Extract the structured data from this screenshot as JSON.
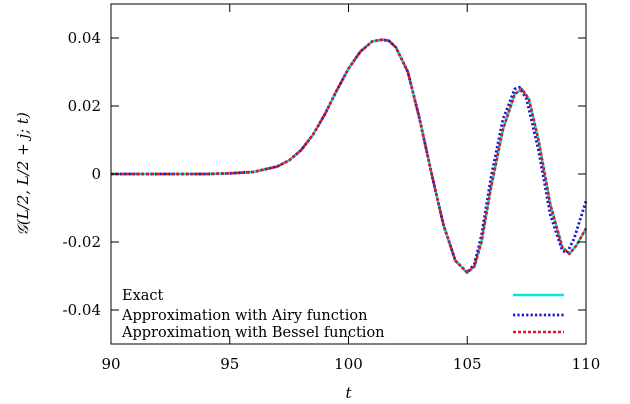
{
  "chart_data": {
    "type": "line",
    "xlabel": "t",
    "ylabel": "𝒢(L/2, L/2 + j; t)",
    "xlim": [
      90,
      110
    ],
    "ylim": [
      -0.05,
      0.05
    ],
    "xticks": [
      90,
      95,
      100,
      105,
      110
    ],
    "xtick_labels": [
      "90",
      "95",
      "100",
      "105",
      "110"
    ],
    "yticks": [
      -0.04,
      -0.02,
      0,
      0.02,
      0.04
    ],
    "ytick_labels": [
      "-0.04",
      "-0.02",
      "0",
      "0.02",
      "0.04"
    ],
    "grid": false,
    "legend_position": "bottom-left",
    "series": [
      {
        "name": "Exact",
        "color": "#00e8e8",
        "style": "solid",
        "x": [
          90,
          94,
          95,
          96,
          97,
          97.5,
          98,
          98.5,
          99,
          99.5,
          100,
          100.5,
          101,
          101.4,
          101.7,
          102,
          102.5,
          103,
          103.5,
          104,
          104.5,
          105,
          105.3,
          105.6,
          106,
          106.5,
          107,
          107.3,
          107.6,
          108,
          108.5,
          109,
          109.3,
          109.6,
          110
        ],
        "y": [
          0,
          0,
          0.0002,
          0.0006,
          0.0022,
          0.004,
          0.007,
          0.0115,
          0.0175,
          0.0245,
          0.031,
          0.036,
          0.039,
          0.0395,
          0.0392,
          0.0372,
          0.03,
          0.016,
          0.0,
          -0.015,
          -0.0255,
          -0.029,
          -0.0272,
          -0.02,
          -0.004,
          0.013,
          0.0235,
          0.025,
          0.022,
          0.01,
          -0.009,
          -0.0215,
          -0.0235,
          -0.021,
          -0.016
        ]
      },
      {
        "name": "Approximation with Airy function",
        "color": "#1a1acc",
        "style": "dotted",
        "x": [
          90,
          94,
          95,
          96,
          97,
          97.5,
          98,
          98.5,
          99,
          99.5,
          100,
          100.5,
          101,
          101.4,
          101.7,
          102,
          102.5,
          103,
          103.5,
          104,
          104.5,
          105,
          105.3,
          105.6,
          106,
          106.5,
          107,
          107.2,
          107.5,
          108,
          108.5,
          109,
          109.2,
          109.5,
          110
        ],
        "y": [
          0,
          0,
          0.0002,
          0.0006,
          0.0022,
          0.004,
          0.007,
          0.0115,
          0.0175,
          0.0245,
          0.031,
          0.036,
          0.039,
          0.0395,
          0.0392,
          0.0372,
          0.03,
          0.016,
          0.0,
          -0.015,
          -0.0255,
          -0.029,
          -0.0265,
          -0.018,
          -0.001,
          0.016,
          0.025,
          0.0255,
          0.022,
          0.007,
          -0.012,
          -0.0225,
          -0.0232,
          -0.019,
          -0.008
        ]
      },
      {
        "name": "Approximation with Bessel function",
        "color": "#e01a1a",
        "style": "dashed",
        "x": [
          90,
          94,
          95,
          96,
          97,
          97.5,
          98,
          98.5,
          99,
          99.5,
          100,
          100.5,
          101,
          101.4,
          101.7,
          102,
          102.5,
          103,
          103.5,
          104,
          104.5,
          105,
          105.3,
          105.6,
          106,
          106.5,
          107,
          107.3,
          107.6,
          108,
          108.5,
          109,
          109.3,
          109.6,
          110
        ],
        "y": [
          0,
          0,
          0.0002,
          0.0006,
          0.0022,
          0.004,
          0.007,
          0.0115,
          0.0175,
          0.0245,
          0.031,
          0.036,
          0.039,
          0.0395,
          0.0392,
          0.0372,
          0.03,
          0.016,
          0.0,
          -0.015,
          -0.0255,
          -0.029,
          -0.0272,
          -0.02,
          -0.004,
          0.013,
          0.0235,
          0.025,
          0.022,
          0.01,
          -0.009,
          -0.0215,
          -0.0235,
          -0.021,
          -0.016
        ]
      }
    ]
  }
}
